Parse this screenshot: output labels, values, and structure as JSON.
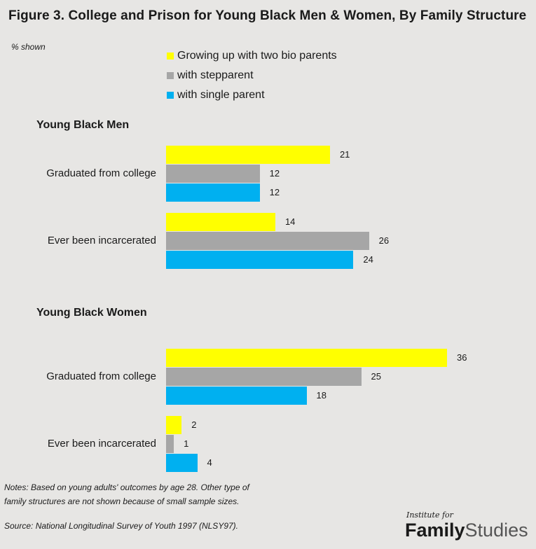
{
  "title": "Figure 3. College and Prison for Young Black Men & Women, By Family Structure",
  "unit_label": "% shown",
  "colors": {
    "two_bio": "#ffff00",
    "stepparent": "#a6a6a6",
    "single": "#00b0f0",
    "background": "#e7e6e4"
  },
  "chart_data": {
    "type": "bar",
    "orientation": "horizontal",
    "title": "Figure 3. College and Prison for Young Black Men & Women, By Family Structure",
    "unit": "% shown",
    "legend_position": "top",
    "grid": false,
    "series": [
      {
        "name": "Growing up with two bio parents",
        "color": "#ffff00"
      },
      {
        "name": "with stepparent",
        "color": "#a6a6a6"
      },
      {
        "name": "with single parent",
        "color": "#00b0f0"
      }
    ],
    "sections": [
      {
        "title": "Young Black Men",
        "groups": [
          {
            "label": "Graduated from college",
            "values": [
              21,
              12,
              12
            ]
          },
          {
            "label": "Ever been incarcerated",
            "values": [
              14,
              26,
              24
            ]
          }
        ]
      },
      {
        "title": "Young Black Women",
        "groups": [
          {
            "label": "Graduated from college",
            "values": [
              36,
              25,
              18
            ]
          },
          {
            "label": "Ever been incarcerated",
            "values": [
              2,
              1,
              4
            ]
          }
        ]
      }
    ]
  },
  "notes": {
    "line1": "Notes: Based on young adults' outcomes by age 28. Other type of",
    "line2": "family structures are not shown because of small sample sizes."
  },
  "source": "Source: National Longitudinal Survey of Youth 1997 (NLSY97).",
  "logo": {
    "small": "Institute for",
    "bold": "Family",
    "light": "Studies"
  }
}
